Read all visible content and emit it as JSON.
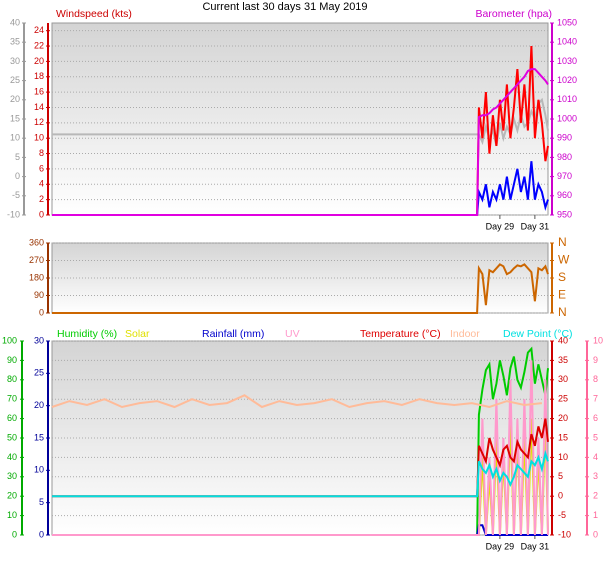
{
  "title": "Current last 30 days 31 May 2019",
  "chart_data": [
    {
      "type": "line",
      "ylabel": "Windspeed (kts)",
      "y2label": "Barometer (hpa)",
      "xlim": [
        3.4,
        31.75
      ],
      "xticks": [
        {
          "value": 29,
          "label": "Day 29"
        },
        {
          "value": 31,
          "label": "Day 31"
        }
      ],
      "x": [
        3.4,
        27.7,
        27.8,
        28.0,
        28.2,
        28.4,
        28.6,
        28.8,
        29.0,
        29.2,
        29.4,
        29.6,
        29.8,
        30.0,
        30.2,
        30.4,
        30.6,
        30.8,
        31.0,
        31.2,
        31.4,
        31.6,
        31.75
      ],
      "ylim": [
        0,
        25
      ],
      "yticks": [
        0,
        2,
        4,
        6,
        8,
        10,
        12,
        14,
        16,
        18,
        20,
        22,
        24
      ],
      "ycolor": "#cc0000",
      "y2lim": [
        950,
        1050
      ],
      "y2ticks": [
        950,
        960,
        970,
        980,
        990,
        1000,
        1010,
        1020,
        1030,
        1040,
        1050
      ],
      "y2color": "#cc00cc",
      "y3lim": [
        -10,
        40
      ],
      "y3ticks": [
        -10,
        -5,
        0,
        5,
        10,
        15,
        20,
        25,
        30,
        35,
        40
      ],
      "y3color": "#999999",
      "grid": true,
      "series": [
        {
          "color": "#b8b8b8",
          "axis": "y3",
          "values": [
            11,
            11,
            11,
            9,
            13,
            10,
            12,
            8,
            14,
            10,
            13,
            11,
            15,
            12,
            16,
            13,
            14,
            17,
            15,
            19,
            20,
            16,
            12
          ]
        },
        {
          "color": "#ff0000",
          "axis": "y",
          "values": [
            0,
            0,
            14,
            10,
            16,
            8,
            13,
            9,
            15,
            11,
            17,
            10,
            14,
            19,
            12,
            17,
            11,
            22,
            10,
            15,
            12,
            7,
            9
          ]
        },
        {
          "color": "#0000ff",
          "axis": "y",
          "values": [
            0,
            0,
            3,
            2,
            4,
            1,
            3,
            2,
            4,
            2,
            5,
            2,
            4,
            6,
            3,
            5,
            2,
            7,
            2,
            4,
            3,
            1,
            2
          ]
        },
        {
          "color": "#e000e0",
          "axis": "y2",
          "values": [
            950,
            950,
            1001,
            1002,
            1002,
            1003,
            1005,
            1006,
            1008,
            1010,
            1012,
            1014,
            1016,
            1018,
            1020,
            1022,
            1025,
            1026,
            1026,
            1024,
            1022,
            1020,
            1018
          ]
        }
      ]
    },
    {
      "type": "line",
      "xlim": [
        3.4,
        31.75
      ],
      "x": [
        3.4,
        27.7,
        27.8,
        28.0,
        28.2,
        28.4,
        28.6,
        28.8,
        29.0,
        29.2,
        29.4,
        29.6,
        29.8,
        30.0,
        30.2,
        30.4,
        30.6,
        30.8,
        31.0,
        31.2,
        31.4,
        31.6,
        31.75
      ],
      "ylim": [
        0,
        360
      ],
      "yticks": [
        0,
        90,
        180,
        270,
        360
      ],
      "ycolor": "#993300",
      "y2lim": [
        0,
        360
      ],
      "y2ticks": [
        {
          "value": 0,
          "label": "N"
        },
        {
          "value": 90,
          "label": "E"
        },
        {
          "value": 180,
          "label": "S"
        },
        {
          "value": 270,
          "label": "W"
        },
        {
          "value": 360,
          "label": "N"
        }
      ],
      "y2color": "#cc6600",
      "grid": true,
      "series": [
        {
          "color": "#cc6600",
          "axis": "y",
          "values": [
            0,
            0,
            230,
            200,
            40,
            220,
            210,
            230,
            250,
            240,
            200,
            210,
            230,
            245,
            240,
            250,
            230,
            210,
            60,
            230,
            220,
            240,
            200
          ]
        }
      ]
    },
    {
      "type": "line",
      "xlim": [
        3.4,
        31.75
      ],
      "xticks": [
        {
          "value": 29,
          "label": "Day 29"
        },
        {
          "value": 31,
          "label": "Day 31"
        }
      ],
      "x": [
        3.4,
        27.7,
        27.8,
        28.0,
        28.2,
        28.4,
        28.6,
        28.8,
        29.0,
        29.2,
        29.4,
        29.6,
        29.8,
        30.0,
        30.2,
        30.4,
        30.6,
        30.8,
        31.0,
        31.2,
        31.4,
        31.6,
        31.75
      ],
      "ylim": [
        0,
        100
      ],
      "yticks": [
        0,
        10,
        20,
        30,
        40,
        50,
        60,
        70,
        80,
        90,
        100
      ],
      "ycolor": "#00aa00",
      "y2lim": [
        -10,
        40
      ],
      "y2ticks": [
        -10,
        -5,
        0,
        5,
        10,
        15,
        20,
        25,
        30,
        35,
        40
      ],
      "y2color": "#cc0000",
      "y3lim": [
        0,
        30
      ],
      "y3ticks": [
        0,
        5,
        10,
        15,
        20,
        25,
        30
      ],
      "y3color": "#000099",
      "y4lim": [
        0,
        10
      ],
      "y4ticks": [
        0,
        1,
        2,
        3,
        4,
        5,
        6,
        7,
        8,
        9,
        10
      ],
      "y4color": "#ff6699",
      "grid": true,
      "series": [
        {
          "name": "Humidity (%)",
          "color": "#00cc00",
          "axis": "y",
          "values": [
            0,
            0,
            62,
            75,
            85,
            88,
            70,
            78,
            90,
            82,
            72,
            86,
            92,
            80,
            76,
            84,
            94,
            96,
            78,
            88,
            80,
            72,
            86
          ]
        },
        {
          "name": "Solar",
          "color": "#e0e000",
          "axis": "y4",
          "values": [
            0,
            0,
            0,
            4,
            0,
            3,
            0,
            5,
            0,
            4,
            0,
            6,
            0,
            5,
            0,
            5,
            0,
            6,
            0,
            4,
            0,
            6,
            0
          ]
        },
        {
          "name": "Rainfall (mm)",
          "color": "#0000cc",
          "axis": "y3",
          "values": [
            0,
            0,
            1.5,
            1.5,
            0,
            0,
            0,
            0,
            0,
            0,
            0,
            0,
            0,
            0,
            0,
            0,
            0,
            0,
            0,
            0,
            0,
            0,
            0
          ]
        },
        {
          "name": "UV",
          "color": "#ff99cc",
          "axis": "y4",
          "values": [
            0,
            0,
            0,
            6,
            0,
            4,
            0,
            7,
            0,
            5,
            0,
            8,
            0,
            6,
            0,
            7,
            0,
            9,
            0,
            5,
            0,
            8,
            0
          ]
        },
        {
          "name": "Temperature (°C)",
          "color": "#dd0000",
          "axis": "y2",
          "values": [
            0,
            0,
            13,
            11,
            9,
            15,
            12,
            10,
            8,
            12,
            13,
            10,
            9,
            14,
            12,
            11,
            10,
            16,
            13,
            18,
            15,
            20,
            14
          ]
        },
        {
          "name": "Indoor",
          "color": "#ffbb99",
          "axis": "y2",
          "x": [
            3.4,
            4.4,
            5.4,
            6.4,
            7.4,
            8.4,
            9.4,
            10.4,
            11.4,
            12.4,
            13.4,
            14.4,
            15.4,
            16.4,
            17.4,
            18.4,
            19.4,
            20.4,
            21.4,
            22.4,
            23.4,
            24.4,
            25.4,
            26.4,
            27.4,
            28.4,
            29.4,
            30.4,
            31.4
          ],
          "values": [
            23,
            24.5,
            23.5,
            25,
            23,
            24,
            24.5,
            23,
            25,
            23.5,
            24,
            26,
            23,
            24.5,
            23.5,
            24,
            25,
            23,
            24,
            24.5,
            23.5,
            25,
            24,
            23.5,
            24,
            23,
            24.5,
            23.5,
            24
          ]
        },
        {
          "name": "Dew Point (°C)",
          "color": "#00e0e0",
          "axis": "y2",
          "values": [
            0,
            0,
            9,
            7,
            6,
            8,
            5,
            7,
            4,
            6,
            5,
            3,
            5,
            8,
            7,
            6,
            5,
            9,
            8,
            10,
            7,
            11,
            9
          ]
        }
      ]
    }
  ]
}
